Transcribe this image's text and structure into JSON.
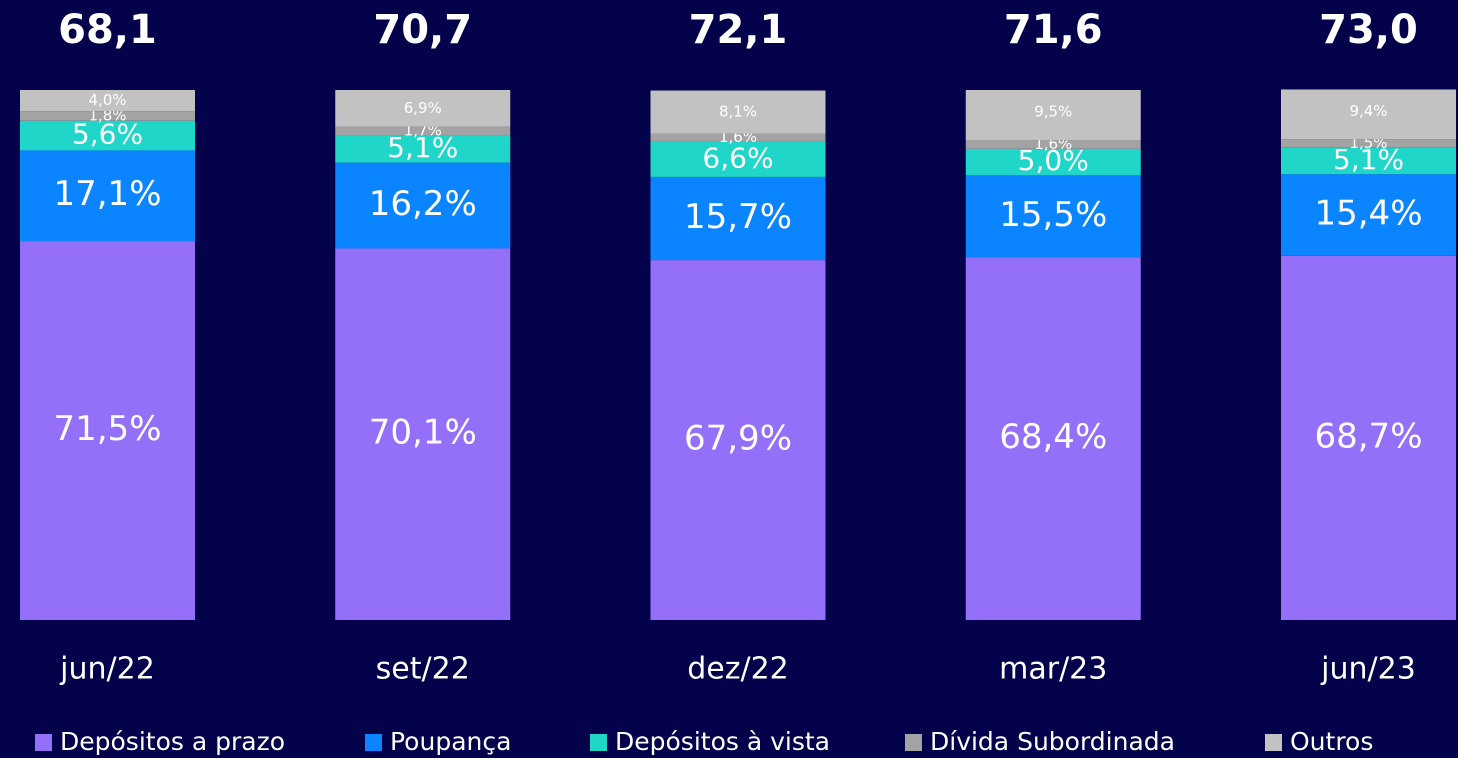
{
  "chart_data": {
    "type": "stacked_bar_100",
    "categories": [
      "jun/22",
      "set/22",
      "dez/22",
      "mar/23",
      "jun/23"
    ],
    "totals": {
      "values": [
        68.1,
        70.7,
        72.1,
        71.6,
        73.0
      ],
      "value_labels": [
        "68,1",
        "70,7",
        "72,1",
        "71,6",
        "73,0"
      ]
    },
    "ylim": [
      0,
      100
    ],
    "series": [
      {
        "name": "Depósitos a prazo",
        "color": "#9370f7",
        "values": [
          71.5,
          70.1,
          67.9,
          68.4,
          68.7
        ],
        "value_labels": [
          "71,5%",
          "70,1%",
          "67,9%",
          "68,4%",
          "68,7%"
        ]
      },
      {
        "name": "Poupança",
        "color": "#0a84ff",
        "values": [
          17.1,
          16.2,
          15.7,
          15.5,
          15.4
        ],
        "value_labels": [
          "17,1%",
          "16,2%",
          "15,7%",
          "15,5%",
          "15,4%"
        ]
      },
      {
        "name": "Depósitos à vista",
        "color": "#1fd6c9",
        "values": [
          5.6,
          5.1,
          6.6,
          5.0,
          5.1
        ],
        "value_labels": [
          "5,6%",
          "5,1%",
          "6,6%",
          "5,0%",
          "5,1%"
        ]
      },
      {
        "name": "Dívida Subordinada",
        "color": "#a3a3a3",
        "values": [
          1.8,
          1.7,
          1.6,
          1.6,
          1.5
        ],
        "value_labels": [
          "1,8%",
          "1,7%",
          "1,6%",
          "1,6%",
          "1,5%"
        ]
      },
      {
        "name": "Outros",
        "color": "#c2c2c2",
        "values": [
          4.0,
          6.9,
          8.1,
          9.5,
          9.4
        ],
        "value_labels": [
          "4,0%",
          "6,9%",
          "8,1%",
          "9,5%",
          "9,4%"
        ]
      }
    ]
  }
}
